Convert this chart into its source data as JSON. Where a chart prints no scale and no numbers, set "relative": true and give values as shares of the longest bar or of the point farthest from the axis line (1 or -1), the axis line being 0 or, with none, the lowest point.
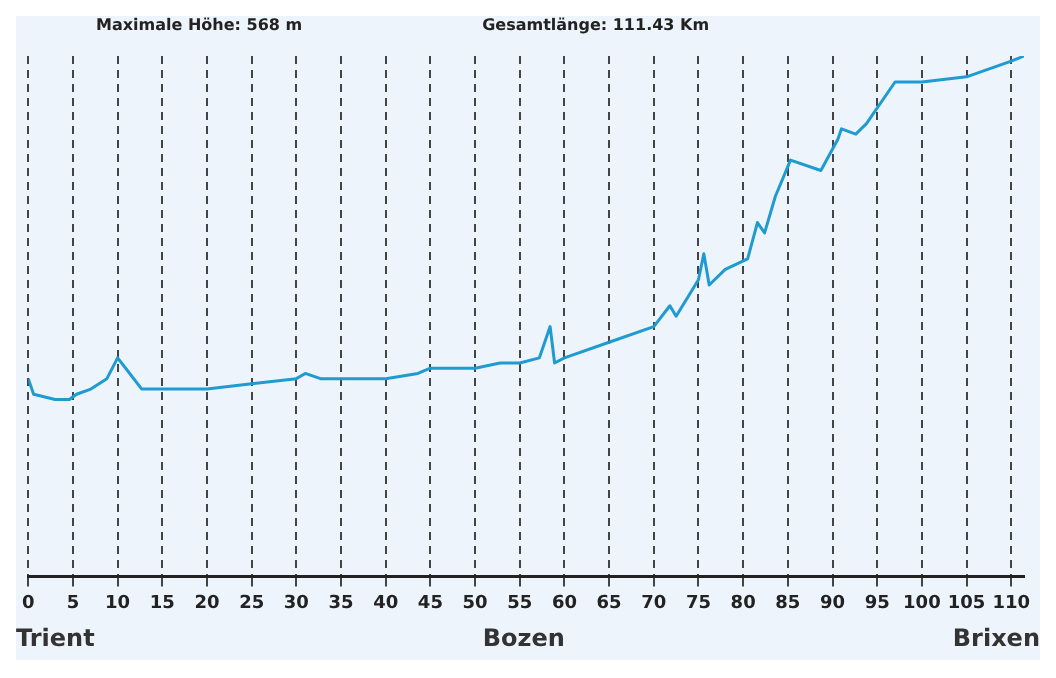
{
  "chart_data": {
    "type": "line",
    "relative": true,
    "annotations": [
      "Maximale Höhe: 568 m",
      "Gesamtlänge: 111.43 Km",
      "Trient",
      "Bozen",
      "Brixen"
    ],
    "x": [
      0,
      0.6,
      3,
      4.6,
      5.4,
      7,
      8.8,
      10,
      10.9,
      12.7,
      15,
      20,
      25,
      30,
      31,
      32.7,
      35,
      40,
      43.6,
      45,
      50,
      52.8,
      55,
      57.2,
      58.4,
      58.9,
      60,
      65,
      70,
      71.8,
      72.5,
      75,
      75.6,
      76.2,
      78,
      80.5,
      81.6,
      82.4,
      83.6,
      85.3,
      88.7,
      90.6,
      91,
      92.6,
      93.8,
      97,
      100,
      105,
      110,
      111.43
    ],
    "series": [
      {
        "color": "#1f9bd1",
        "values": [
          0.38,
          0.35,
          0.34,
          0.34,
          0.35,
          0.36,
          0.38,
          0.42,
          0.4,
          0.36,
          0.36,
          0.36,
          0.37,
          0.38,
          0.39,
          0.38,
          0.38,
          0.38,
          0.39,
          0.4,
          0.4,
          0.41,
          0.41,
          0.42,
          0.48,
          0.41,
          0.42,
          0.45,
          0.48,
          0.52,
          0.5,
          0.57,
          0.62,
          0.56,
          0.59,
          0.61,
          0.68,
          0.66,
          0.73,
          0.8,
          0.78,
          0.84,
          0.86,
          0.85,
          0.87,
          0.95,
          0.95,
          0.96,
          0.99,
          1
        ]
      }
    ],
    "xlim": [
      0,
      111.43
    ],
    "xticks": [
      0,
      5,
      10,
      15,
      20,
      25,
      30,
      35,
      40,
      45,
      50,
      55,
      60,
      65,
      70,
      75,
      80,
      85,
      90,
      95,
      100,
      105,
      110
    ],
    "grid": "x",
    "marker": "none",
    "line_style": "solid",
    "legend": false
  }
}
